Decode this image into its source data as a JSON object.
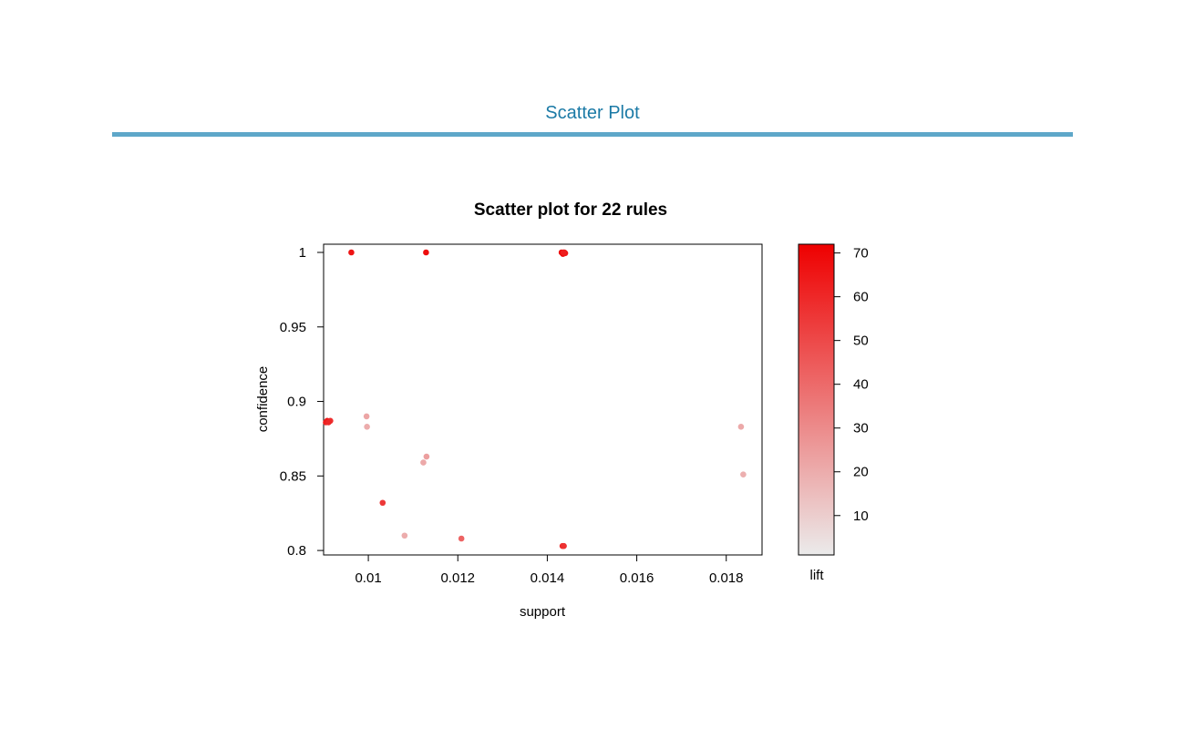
{
  "page": {
    "title": "Scatter Plot",
    "accent_color": "#5ea7c9",
    "title_color": "#1b7aa6"
  },
  "chart_data": {
    "type": "scatter",
    "title": "Scatter plot for 22 rules",
    "xlabel": "support",
    "ylabel": "confidence",
    "xlim": [
      0.009,
      0.0188
    ],
    "ylim": [
      0.797,
      1.0055
    ],
    "x_ticks": [
      0.01,
      0.012,
      0.014,
      0.016,
      0.018
    ],
    "x_tick_labels": [
      "0.01",
      "0.012",
      "0.014",
      "0.016",
      "0.018"
    ],
    "y_ticks": [
      0.8,
      0.85,
      0.9,
      0.95,
      1.0
    ],
    "y_tick_labels": [
      "0.8",
      "0.85",
      "0.9",
      "0.95",
      "1"
    ],
    "grid": false,
    "color_scale": {
      "label": "lift",
      "min": 1,
      "max": 72,
      "low_color": "#ebebeb",
      "high_color": "#ee0000",
      "ticks": [
        10,
        20,
        30,
        40,
        50,
        60,
        70
      ],
      "tick_labels": [
        "10",
        "20",
        "30",
        "40",
        "50",
        "60",
        "70"
      ]
    },
    "points": [
      {
        "support": 0.00962,
        "confidence": 1.0,
        "lift": 66
      },
      {
        "support": 0.01129,
        "confidence": 1.0,
        "lift": 68
      },
      {
        "support": 0.01432,
        "confidence": 1.0,
        "lift": 70
      },
      {
        "support": 0.01435,
        "confidence": 0.999,
        "lift": 69
      },
      {
        "support": 0.01438,
        "confidence": 1.0,
        "lift": 67
      },
      {
        "support": 0.0144,
        "confidence": 0.9995,
        "lift": 65
      },
      {
        "support": 0.00905,
        "confidence": 0.886,
        "lift": 62
      },
      {
        "support": 0.00908,
        "confidence": 0.887,
        "lift": 64
      },
      {
        "support": 0.00915,
        "confidence": 0.887,
        "lift": 58
      },
      {
        "support": 0.00996,
        "confidence": 0.89,
        "lift": 22
      },
      {
        "support": 0.00997,
        "confidence": 0.883,
        "lift": 20
      },
      {
        "support": 0.0113,
        "confidence": 0.863,
        "lift": 24
      },
      {
        "support": 0.01123,
        "confidence": 0.859,
        "lift": 21
      },
      {
        "support": 0.01032,
        "confidence": 0.832,
        "lift": 55
      },
      {
        "support": 0.01081,
        "confidence": 0.81,
        "lift": 20
      },
      {
        "support": 0.01208,
        "confidence": 0.808,
        "lift": 42
      },
      {
        "support": 0.01434,
        "confidence": 0.803,
        "lift": 60
      },
      {
        "support": 0.01437,
        "confidence": 0.803,
        "lift": 57
      },
      {
        "support": 0.01833,
        "confidence": 0.883,
        "lift": 21
      },
      {
        "support": 0.01838,
        "confidence": 0.851,
        "lift": 19
      },
      {
        "support": 0.01436,
        "confidence": 1.0,
        "lift": 63
      },
      {
        "support": 0.00911,
        "confidence": 0.886,
        "lift": 60
      }
    ]
  }
}
